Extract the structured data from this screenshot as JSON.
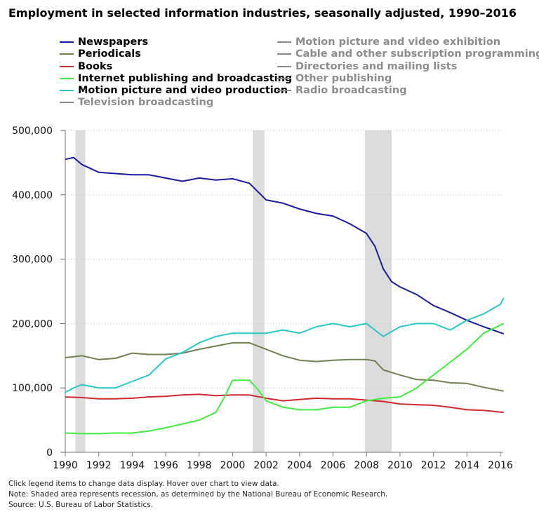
{
  "chart_data": {
    "type": "line",
    "title": "Employment in selected information industries, seasonally adjusted, 1990–2016",
    "xlim": [
      1990,
      2016.3
    ],
    "ylim": [
      0,
      500000
    ],
    "x_ticks": [
      "1990",
      "1992",
      "1994",
      "1996",
      "1998",
      "2000",
      "2002",
      "2004",
      "2006",
      "2008",
      "2010",
      "2012",
      "2014",
      "2016"
    ],
    "y_ticks": [
      "0",
      "100,000",
      "200,000",
      "300,000",
      "400,000",
      "500,000"
    ],
    "grid": "horizontal dotted",
    "legend_placement": "top",
    "recessions": [
      [
        1990.6,
        1991.2
      ],
      [
        2001.2,
        2001.9
      ],
      [
        2007.9,
        2009.5
      ]
    ],
    "recession_color": "#dcdcdc",
    "series": [
      {
        "name": "Newspapers",
        "color": "#1a1aa0",
        "active": true,
        "x": [
          1990,
          1990.5,
          1991,
          1992,
          1993,
          1994,
          1995,
          1996,
          1997,
          1998,
          1999,
          2000,
          2001,
          2002,
          2003,
          2004,
          2005,
          2006,
          2007,
          2008,
          2008.5,
          2009,
          2009.5,
          2010,
          2011,
          2012,
          2013,
          2014,
          2015,
          2016.2
        ],
        "y": [
          455000,
          458000,
          447000,
          435000,
          433000,
          431000,
          431000,
          426000,
          421000,
          426000,
          423000,
          425000,
          418000,
          392000,
          387000,
          378000,
          371000,
          367000,
          355000,
          340000,
          320000,
          285000,
          265000,
          257000,
          245000,
          228000,
          217000,
          205000,
          195000,
          184000
        ]
      },
      {
        "name": "Periodicals",
        "color": "#70804f",
        "active": true,
        "x": [
          1990,
          1991,
          1992,
          1993,
          1994,
          1995,
          1996,
          1997,
          1998,
          1999,
          2000,
          2001,
          2002,
          2003,
          2004,
          2005,
          2006,
          2007,
          2008,
          2008.5,
          2009,
          2010,
          2011,
          2012,
          2013,
          2014,
          2015,
          2016.2
        ],
        "y": [
          147000,
          150000,
          144000,
          146000,
          154000,
          152000,
          152000,
          154000,
          160000,
          165000,
          170000,
          170000,
          160000,
          150000,
          143000,
          141000,
          143000,
          144000,
          144000,
          142000,
          128000,
          120000,
          113000,
          112000,
          108000,
          107000,
          101000,
          95000
        ]
      },
      {
        "name": "Books",
        "color": "#d0282c",
        "active": true,
        "x": [
          1990,
          1991,
          1992,
          1993,
          1994,
          1995,
          1996,
          1997,
          1998,
          1999,
          2000,
          2001,
          2002,
          2003,
          2004,
          2005,
          2006,
          2007,
          2008,
          2009,
          2010,
          2011,
          2012,
          2013,
          2014,
          2015,
          2016.2
        ],
        "y": [
          86000,
          85000,
          83000,
          83000,
          84000,
          86000,
          87000,
          89000,
          90000,
          88000,
          89000,
          89000,
          84000,
          80000,
          82000,
          84000,
          83000,
          83000,
          81000,
          79000,
          75000,
          74000,
          73000,
          70000,
          66000,
          65000,
          62000
        ]
      },
      {
        "name": "Internet publishing and broadcasting",
        "color": "#3ef03e",
        "active": true,
        "x": [
          1990,
          1991,
          1992,
          1993,
          1994,
          1995,
          1996,
          1997,
          1998,
          1999,
          1999.5,
          2000,
          2001,
          2001.5,
          2002,
          2003,
          2004,
          2005,
          2006,
          2007,
          2008,
          2009,
          2010,
          2011,
          2012,
          2013,
          2014,
          2015,
          2016.2
        ],
        "y": [
          30000,
          29000,
          29000,
          30000,
          30000,
          33000,
          38000,
          44000,
          50000,
          62000,
          85000,
          112000,
          112000,
          98000,
          80000,
          70000,
          66000,
          66000,
          70000,
          70000,
          80000,
          84000,
          86000,
          100000,
          120000,
          140000,
          160000,
          185000,
          200000
        ]
      },
      {
        "name": "Motion picture and video production",
        "color": "#28c8c8",
        "active": true,
        "x": [
          1990,
          1990.5,
          1991,
          1992,
          1993,
          1994,
          1995,
          1996,
          1997,
          1998,
          1999,
          2000,
          2001,
          2002,
          2003,
          2004,
          2005,
          2006,
          2007,
          2008,
          2009,
          2010,
          2011,
          2012,
          2013,
          2014,
          2015,
          2016,
          2016.2
        ],
        "y": [
          93000,
          100000,
          105000,
          100000,
          100000,
          110000,
          120000,
          145000,
          155000,
          170000,
          180000,
          185000,
          185000,
          185000,
          190000,
          185000,
          195000,
          200000,
          195000,
          200000,
          180000,
          195000,
          200000,
          200000,
          190000,
          205000,
          215000,
          230000,
          240000
        ]
      },
      {
        "name": "Television broadcasting",
        "color": "#888888",
        "active": false
      },
      {
        "name": "Motion picture and video exhibition",
        "color": "#888888",
        "active": false
      },
      {
        "name": "Cable and other subscription programming",
        "color": "#888888",
        "active": false
      },
      {
        "name": "Directories and mailing lists",
        "color": "#888888",
        "active": false
      },
      {
        "name": "Other publishing",
        "color": "#888888",
        "active": false
      },
      {
        "name": "Radio broadcasting",
        "color": "#888888",
        "active": false
      }
    ]
  },
  "notes": [
    "Click legend items to change data display. Hover over chart to view data.",
    "Note: Shaded area represents recession, as determined by the National Bureau of Economic Research.",
    "Source: U.S. Bureau of Labor Statistics."
  ]
}
